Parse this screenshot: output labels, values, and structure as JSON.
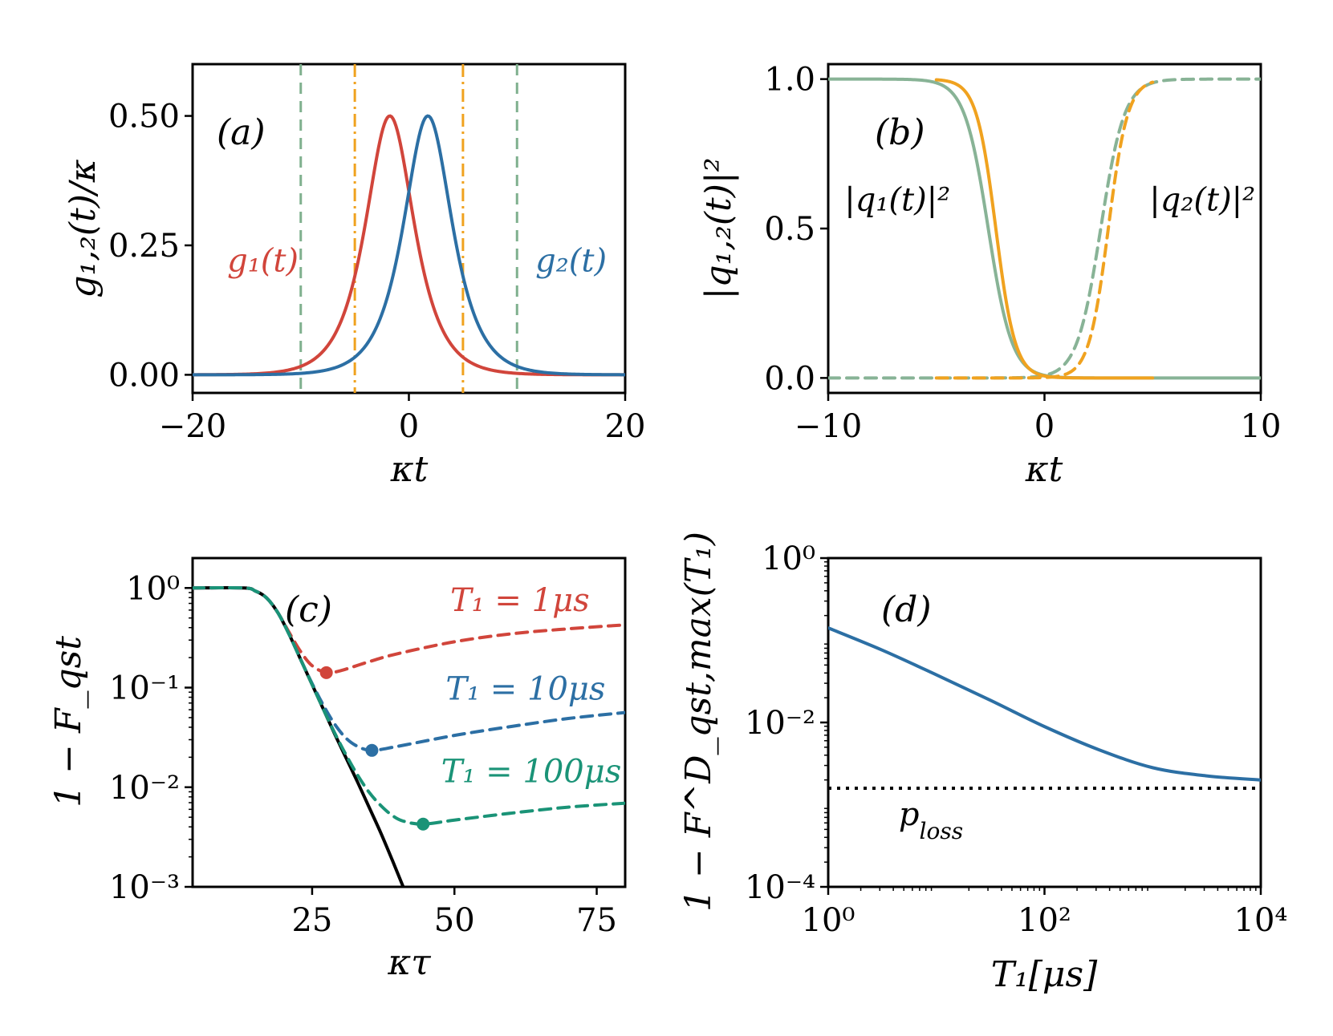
{
  "chart_data": [
    {
      "id": "a",
      "type": "line",
      "panel_label": "(a)",
      "xlabel": "κt",
      "ylabel": "g₁,₂(t)/κ",
      "xlim": [
        -20,
        20
      ],
      "ylim": [
        -0.035,
        0.6
      ],
      "xticks": [
        {
          "v": -20,
          "label": "−20"
        },
        {
          "v": 0,
          "label": "0"
        },
        {
          "v": 20,
          "label": "20"
        }
      ],
      "yticks": [
        {
          "v": 0,
          "label": "0.00"
        },
        {
          "v": 0.25,
          "label": "0.25"
        },
        {
          "v": 0.5,
          "label": "0.50"
        }
      ],
      "series": [
        {
          "name": "g1(t)",
          "label": "g₁(t)",
          "color": "#d1453b",
          "style": "solid",
          "function": "sech_peak",
          "params": {
            "peak": 0.5,
            "center": -1.76,
            "width": 2.0
          },
          "x_range": [
            -20,
            20
          ]
        },
        {
          "name": "g2(t)",
          "label": "g₂(t)",
          "color": "#2c6fa4",
          "style": "solid",
          "function": "sech_peak",
          "params": {
            "peak": 0.5,
            "center": 1.76,
            "width": 2.0
          },
          "x_range": [
            -20,
            20
          ]
        }
      ],
      "vlines": [
        {
          "x": -10,
          "color": "#7fb08e",
          "style": "dashed"
        },
        {
          "x": 10,
          "color": "#7fb08e",
          "style": "dashed"
        },
        {
          "x": -5,
          "color": "#f0a21f",
          "style": "dashdot"
        },
        {
          "x": 5,
          "color": "#f0a21f",
          "style": "dashdot"
        }
      ],
      "annotations": [
        {
          "text": "g₁(t)",
          "color": "#d1453b",
          "x": -13.5,
          "y": 0.2
        },
        {
          "text": "g₂(t)",
          "color": "#2c6fa4",
          "x": 15,
          "y": 0.2
        }
      ]
    },
    {
      "id": "b",
      "type": "line",
      "panel_label": "(b)",
      "xlabel": "κt",
      "ylabel": "|q₁,₂(t)|²",
      "xlim": [
        -10,
        10
      ],
      "ylim": [
        -0.05,
        1.05
      ],
      "xticks": [
        {
          "v": -10,
          "label": "−10"
        },
        {
          "v": 0,
          "label": "0"
        },
        {
          "v": 10,
          "label": "10"
        }
      ],
      "yticks": [
        {
          "v": 0,
          "label": "0.0"
        },
        {
          "v": 0.5,
          "label": "0.5"
        },
        {
          "v": 1.0,
          "label": "1.0"
        }
      ],
      "series": [
        {
          "name": "|q1|^2 long",
          "color": "#88b396",
          "style": "solid",
          "function": "logistic_down",
          "params": {
            "center": -2.6,
            "width": 0.55
          },
          "x_range": [
            -10,
            10
          ]
        },
        {
          "name": "|q2|^2 long",
          "color": "#88b396",
          "style": "dashed",
          "function": "logistic_up",
          "params": {
            "center": 2.6,
            "width": 0.55
          },
          "x_range": [
            -10,
            10
          ]
        },
        {
          "name": "|q1|^2 short",
          "color": "#f0a21f",
          "style": "solid",
          "function": "logistic_down",
          "params": {
            "center": -2.25,
            "width": 0.45
          },
          "x_range": [
            -5,
            5
          ]
        },
        {
          "name": "|q2|^2 short",
          "color": "#f0a21f",
          "style": "dashed",
          "function": "logistic_up",
          "params": {
            "center": 2.95,
            "width": 0.45
          },
          "x_range": [
            -5,
            5
          ]
        }
      ],
      "annotations": [
        {
          "text": "|q₁(t)|²",
          "color": "#000000",
          "x": -6.8,
          "y": 0.56
        },
        {
          "text": "|q₂(t)|²",
          "color": "#000000",
          "x": 7.3,
          "y": 0.56
        }
      ]
    },
    {
      "id": "c",
      "type": "line",
      "panel_label": "(c)",
      "xlabel": "κτ",
      "ylabel": "1 − F_qst",
      "yscale": "log",
      "xlim": [
        4,
        80
      ],
      "ylim_log10": [
        -3,
        0.3
      ],
      "xticks": [
        {
          "v": 25,
          "label": "25"
        },
        {
          "v": 50,
          "label": "50"
        },
        {
          "v": 75,
          "label": "75"
        }
      ],
      "yticks": [
        {
          "v": -3,
          "label": "10⁻³"
        },
        {
          "v": -2,
          "label": "10⁻²"
        },
        {
          "v": -1,
          "label": "10⁻¹"
        },
        {
          "v": 0,
          "label": "10⁰"
        }
      ],
      "series": [
        {
          "name": "ideal",
          "color": "#000000",
          "style": "solid",
          "points_log10": [
            [
              4,
              0
            ],
            [
              13,
              0
            ],
            [
              15,
              -0.03
            ],
            [
              17,
              -0.1
            ],
            [
              19,
              -0.25
            ],
            [
              21,
              -0.47
            ],
            [
              23,
              -0.72
            ],
            [
              25,
              -0.97
            ],
            [
              27,
              -1.22
            ],
            [
              29,
              -1.47
            ],
            [
              31,
              -1.71
            ],
            [
              33,
              -1.95
            ],
            [
              35,
              -2.2
            ],
            [
              37,
              -2.45
            ],
            [
              39,
              -2.72
            ],
            [
              40.5,
              -2.93
            ],
            [
              41,
              -3
            ]
          ]
        },
        {
          "name": "T1 = 1μs",
          "label": "T₁ = 1μs",
          "color": "#d1453b",
          "style": "dashed",
          "min": {
            "x": 27.5,
            "y_log10": -0.85
          },
          "points_log10": [
            [
              4,
              0
            ],
            [
              13,
              0
            ],
            [
              15,
              -0.03
            ],
            [
              17,
              -0.1
            ],
            [
              19,
              -0.25
            ],
            [
              21,
              -0.45
            ],
            [
              23,
              -0.64
            ],
            [
              25,
              -0.78
            ],
            [
              27.5,
              -0.85
            ],
            [
              30,
              -0.83
            ],
            [
              35,
              -0.74
            ],
            [
              40,
              -0.66
            ],
            [
              50,
              -0.54
            ],
            [
              60,
              -0.46
            ],
            [
              70,
              -0.41
            ],
            [
              80,
              -0.37
            ]
          ]
        },
        {
          "name": "T1 = 10μs",
          "label": "T₁ = 10μs",
          "color": "#2c6fa4",
          "style": "dashed",
          "min": {
            "x": 35.5,
            "y_log10": -1.63
          },
          "points_log10": [
            [
              4,
              0
            ],
            [
              13,
              0
            ],
            [
              15,
              -0.03
            ],
            [
              17,
              -0.1
            ],
            [
              19,
              -0.25
            ],
            [
              21,
              -0.47
            ],
            [
              23,
              -0.72
            ],
            [
              25,
              -0.96
            ],
            [
              27,
              -1.18
            ],
            [
              29,
              -1.37
            ],
            [
              31,
              -1.51
            ],
            [
              33,
              -1.59
            ],
            [
              35.5,
              -1.63
            ],
            [
              40,
              -1.59
            ],
            [
              50,
              -1.48
            ],
            [
              60,
              -1.39
            ],
            [
              70,
              -1.31
            ],
            [
              80,
              -1.25
            ]
          ]
        },
        {
          "name": "T1 = 100μs",
          "label": "T₁ = 100μs",
          "color": "#1a9377",
          "style": "dashed",
          "min": {
            "x": 44.5,
            "y_log10": -2.37
          },
          "points_log10": [
            [
              4,
              0
            ],
            [
              13,
              0
            ],
            [
              15,
              -0.03
            ],
            [
              17,
              -0.1
            ],
            [
              19,
              -0.25
            ],
            [
              21,
              -0.47
            ],
            [
              23,
              -0.72
            ],
            [
              25,
              -0.97
            ],
            [
              27,
              -1.22
            ],
            [
              29,
              -1.46
            ],
            [
              31,
              -1.68
            ],
            [
              33,
              -1.88
            ],
            [
              35,
              -2.05
            ],
            [
              37,
              -2.18
            ],
            [
              39,
              -2.28
            ],
            [
              41,
              -2.34
            ],
            [
              44.5,
              -2.37
            ],
            [
              50,
              -2.33
            ],
            [
              60,
              -2.26
            ],
            [
              70,
              -2.2
            ],
            [
              80,
              -2.16
            ]
          ]
        }
      ],
      "annotations": [
        {
          "text": "T₁ = 1μs",
          "color": "#d1453b",
          "x": 61.5,
          "y_log10": -0.23
        },
        {
          "text": "T₁ = 10μs",
          "color": "#2c6fa4",
          "x": 62.5,
          "y_log10": -1.12
        },
        {
          "text": "T₁ = 100μs",
          "color": "#1a9377",
          "x": 63.5,
          "y_log10": -1.95
        }
      ]
    },
    {
      "id": "d",
      "type": "line",
      "panel_label": "(d)",
      "xlabel": "T₁[μs]",
      "ylabel": "1 − F^D_qst,max(T₁)",
      "xscale": "log",
      "yscale": "log",
      "xlim_log10": [
        0,
        4
      ],
      "ylim_log10": [
        -4,
        0
      ],
      "xticks": [
        {
          "v": 0,
          "label": "10⁰"
        },
        {
          "v": 2,
          "label": "10²"
        },
        {
          "v": 4,
          "label": "10⁴"
        }
      ],
      "yticks": [
        {
          "v": -4,
          "label": "10⁻⁴"
        },
        {
          "v": -2,
          "label": "10⁻²"
        },
        {
          "v": 0,
          "label": "10⁰"
        }
      ],
      "series": [
        {
          "name": "1 − F max",
          "color": "#2c6fa4",
          "style": "solid",
          "points_log10": [
            [
              0,
              -0.85
            ],
            [
              0.5,
              -1.12
            ],
            [
              1,
              -1.42
            ],
            [
              1.5,
              -1.73
            ],
            [
              2,
              -2.05
            ],
            [
              2.5,
              -2.33
            ],
            [
              3,
              -2.55
            ],
            [
              3.5,
              -2.65
            ],
            [
              4,
              -2.7
            ]
          ]
        },
        {
          "name": "p_loss",
          "label": "p_loss",
          "color": "#000000",
          "style": "dotted",
          "points_log10": [
            [
              0,
              -2.8
            ],
            [
              4,
              -2.8
            ]
          ]
        }
      ],
      "annotations": [
        {
          "text": "p",
          "sub": "loss",
          "color": "#000000",
          "x_log10": 0.95,
          "y_log10": -3.25
        }
      ]
    }
  ]
}
